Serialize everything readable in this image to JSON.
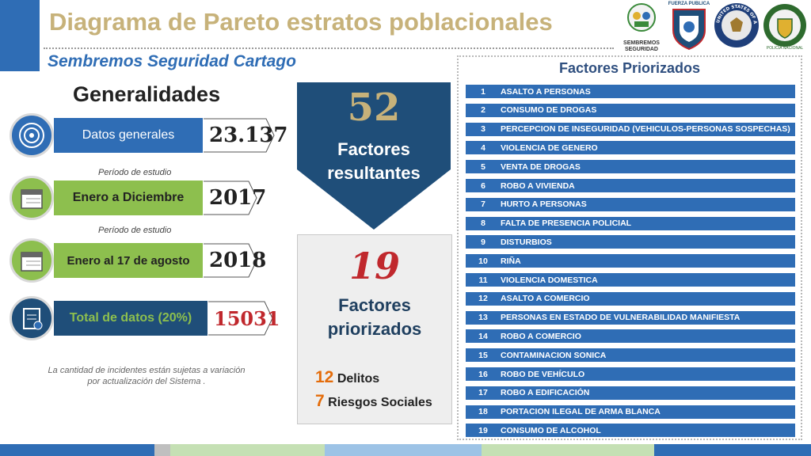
{
  "header": {
    "title": "Diagrama de Pareto estratos poblacionales",
    "subtitle": "Sembremos Seguridad Cartago",
    "logos": [
      "SEMBREMOS SEGURIDAD",
      "FUERZA PUBLICA",
      "UNITED STATES OF AMERICA EMBASSY",
      "POLICIA NACIONAL"
    ]
  },
  "generalidades": {
    "heading": "Generalidades",
    "stats": [
      {
        "label": "Datos generales",
        "value": "23.137",
        "icon": "target-icon"
      },
      {
        "label": "Enero a Diciembre",
        "value": "2017",
        "icon": "calendar-icon",
        "note": "Período de estudio"
      },
      {
        "label": "Enero al 17 de agosto",
        "value": "2018",
        "icon": "calendar-icon",
        "note": "Período de estudio"
      },
      {
        "label": "Total de datos (20%)",
        "value": "15031",
        "icon": "clipboard-icon"
      }
    ],
    "footnote_line1": "La cantidad de incidentes están sujetas a variación",
    "footnote_line2": "por actualización del Sistema ."
  },
  "resultantes": {
    "number": "52",
    "label_line1": "Factores",
    "label_line2": "resultantes"
  },
  "priorizados": {
    "number": "19",
    "label_line1": "Factores",
    "label_line2": "priorizados",
    "delitos_count": "12",
    "delitos_label": "Delitos",
    "riesgos_count": "7",
    "riesgos_label": "Riesgos Sociales"
  },
  "factors": {
    "title": "Factores Priorizados",
    "items": [
      {
        "n": "1",
        "name": "ASALTO A PERSONAS"
      },
      {
        "n": "2",
        "name": "CONSUMO DE DROGAS"
      },
      {
        "n": "3",
        "name": "PERCEPCION DE INSEGURIDAD (VEHICULOS-PERSONAS SOSPECHAS)"
      },
      {
        "n": "4",
        "name": "VIOLENCIA DE GENERO"
      },
      {
        "n": "5",
        "name": "VENTA DE DROGAS"
      },
      {
        "n": "6",
        "name": "ROBO A VIVIENDA"
      },
      {
        "n": "7",
        "name": "HURTO A PERSONAS"
      },
      {
        "n": "8",
        "name": "FALTA DE PRESENCIA POLICIAL"
      },
      {
        "n": "9",
        "name": "DISTURBIOS"
      },
      {
        "n": "10",
        "name": "RIÑA"
      },
      {
        "n": "11",
        "name": "VIOLENCIA DOMESTICA"
      },
      {
        "n": "12",
        "name": "ASALTO A COMERCIO"
      },
      {
        "n": "13",
        "name": "PERSONAS EN ESTADO DE VULNERABILIDAD MANIFIESTA"
      },
      {
        "n": "14",
        "name": "ROBO A COMERCIO"
      },
      {
        "n": "15",
        "name": "CONTAMINACION SONICA"
      },
      {
        "n": "16",
        "name": "ROBO DE VEHÍCULO"
      },
      {
        "n": "17",
        "name": "ROBO A EDIFICACIÓN"
      },
      {
        "n": "18",
        "name": "PORTACION ILEGAL DE ARMA BLANCA"
      },
      {
        "n": "19",
        "name": "CONSUMO DE ALCOHOL"
      }
    ]
  },
  "colors": {
    "blue": "#2f6db5",
    "green": "#8dbf4e",
    "navy": "#1f4e79",
    "red": "#c0282d",
    "gold": "#c7b27a"
  }
}
